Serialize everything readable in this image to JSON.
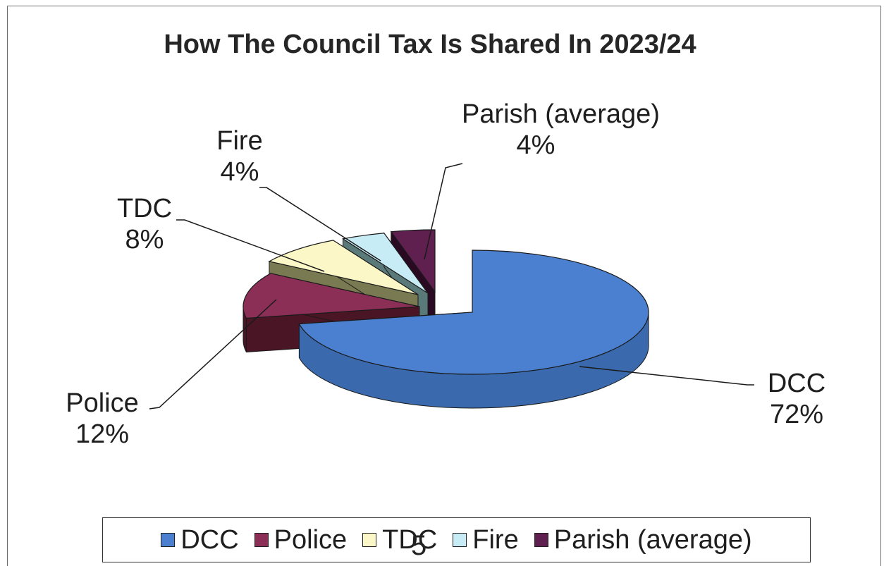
{
  "page_number": "5",
  "chart_data": {
    "type": "pie",
    "title": "How The Council Tax Is Shared In 2023/24",
    "style": "3d-exploded",
    "legend_position": "bottom",
    "slices": [
      {
        "name": "DCC",
        "value": 72,
        "label": "72%",
        "color": "#4a80cf",
        "side_color": "#3a6aad"
      },
      {
        "name": "Police",
        "value": 12,
        "label": "12%",
        "color": "#8b2f57",
        "side_color": "#4a1525"
      },
      {
        "name": "TDC",
        "value": 8,
        "label": "8%",
        "color": "#fbf7c6",
        "side_color": "#7a7a52"
      },
      {
        "name": "Fire",
        "value": 4,
        "label": "4%",
        "color": "#c8ecf6",
        "side_color": "#5a7a7a"
      },
      {
        "name": "Parish (average)",
        "value": 4,
        "label": "4%",
        "color": "#5f1f4f",
        "side_color": "#2a0a22"
      }
    ]
  }
}
